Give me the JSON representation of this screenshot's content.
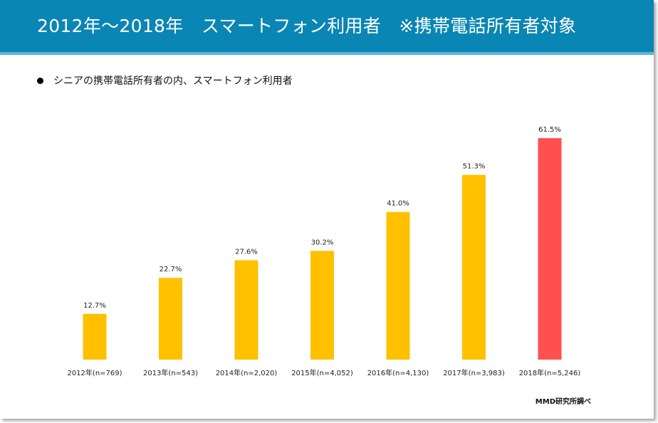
{
  "header": {
    "title": "2012年～2018年　スマートフォン利用者　※携帯電話所有者対象"
  },
  "bullet": {
    "text": "シニアの携帯電話所有者の内、スマートフォン利用者"
  },
  "source": "MMD研究所調べ",
  "colors": {
    "header_bg": "#0a86b4",
    "header_line": "#5ab4d9",
    "bar_default": "#ffc000",
    "bar_highlight": "#ff5050"
  },
  "chart_data": {
    "type": "bar",
    "categories": [
      "2012年(n=769)",
      "2013年(n=543)",
      "2014年(n=2,020)",
      "2015年(n=4,052)",
      "2016年(n=4,130)",
      "2017年(n=3,983)",
      "2018年(n=5,246)"
    ],
    "values": [
      12.7,
      22.7,
      27.6,
      30.2,
      41.0,
      51.3,
      61.5
    ],
    "data_labels": [
      "12.7%",
      "22.7%",
      "27.6%",
      "30.2%",
      "41.0%",
      "51.3%",
      "61.5%"
    ],
    "highlight_index": 6,
    "ylim": [
      0,
      61.5
    ],
    "grid": false,
    "legend": "none",
    "title": "",
    "xlabel": "",
    "ylabel": ""
  }
}
